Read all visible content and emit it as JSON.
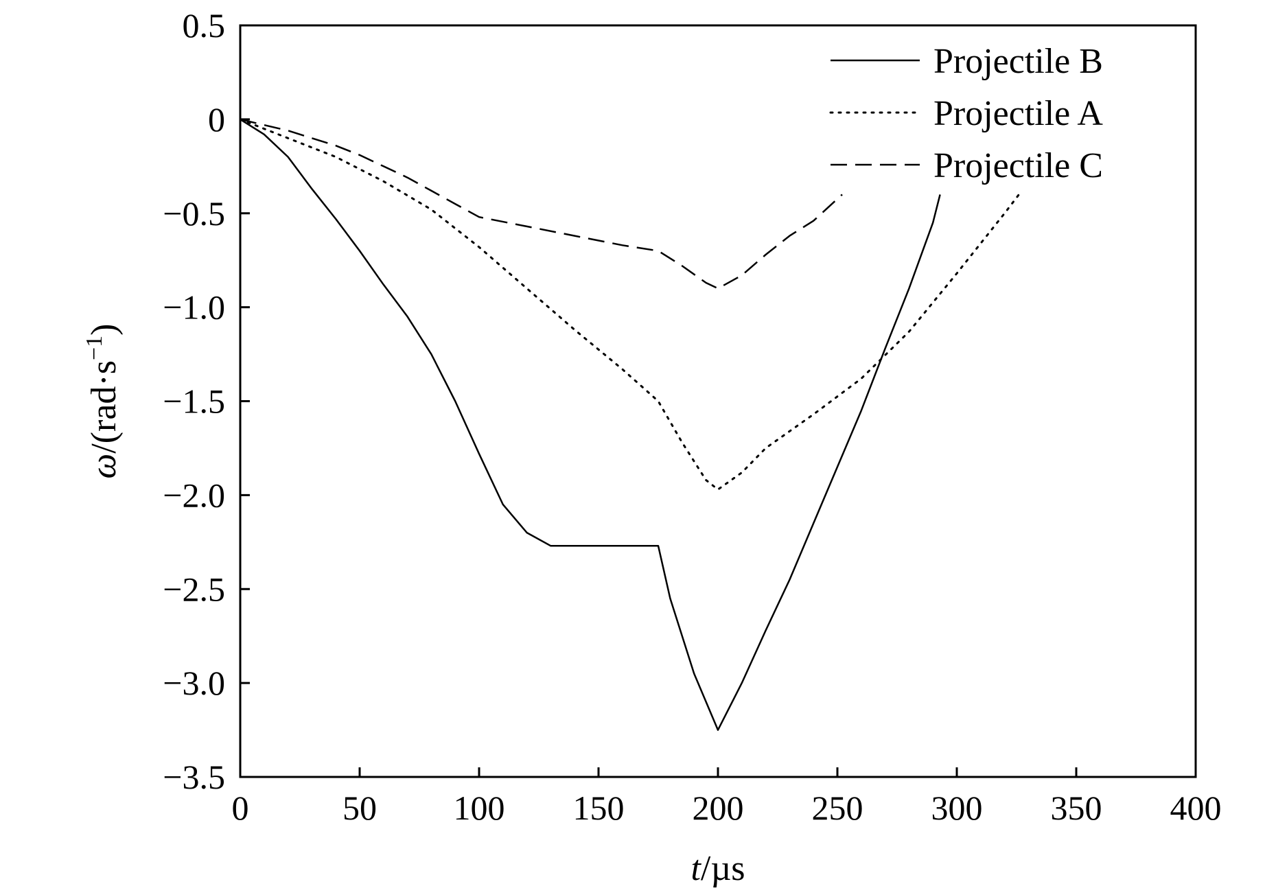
{
  "chart_data": {
    "type": "line",
    "xlabel_var": "t",
    "xlabel_unit": "/µs",
    "ylabel_var": "ω",
    "ylabel_unit": "/(rad·s",
    "ylabel_exp": "−1",
    "ylabel_close": ")",
    "xlim": [
      0,
      400
    ],
    "ylim": [
      -3.5,
      0.5
    ],
    "xticks": [
      0,
      50,
      100,
      150,
      200,
      250,
      300,
      350,
      400
    ],
    "yticks": [
      0.5,
      0,
      -0.5,
      -1.0,
      -1.5,
      -2.0,
      -2.5,
      -3.0,
      -3.5
    ],
    "ytick_labels": [
      "0.5",
      "0",
      "−0.5",
      "−1.0",
      "−1.5",
      "−2.0",
      "−2.5",
      "−3.0",
      "−3.5"
    ],
    "legend_position": "top-right",
    "grid": false,
    "series": [
      {
        "name": "Projectile B",
        "style": "solid",
        "color": "#000000",
        "x": [
          0,
          10,
          20,
          30,
          40,
          50,
          60,
          70,
          80,
          90,
          100,
          110,
          120,
          130,
          140,
          150,
          160,
          175,
          180,
          190,
          200,
          210,
          220,
          230,
          240,
          250,
          260,
          270,
          280,
          290,
          293
        ],
        "y": [
          0,
          -0.08,
          -0.2,
          -0.37,
          -0.53,
          -0.7,
          -0.88,
          -1.05,
          -1.25,
          -1.5,
          -1.78,
          -2.05,
          -2.2,
          -2.27,
          -2.27,
          -2.27,
          -2.27,
          -2.27,
          -2.55,
          -2.95,
          -3.25,
          -3.0,
          -2.72,
          -2.45,
          -2.15,
          -1.85,
          -1.55,
          -1.22,
          -0.9,
          -0.55,
          -0.4
        ]
      },
      {
        "name": "Projectile A",
        "style": "dotted",
        "color": "#000000",
        "x": [
          0,
          20,
          40,
          60,
          80,
          100,
          120,
          140,
          160,
          175,
          185,
          195,
          200,
          210,
          220,
          240,
          260,
          280,
          300,
          320,
          326
        ],
        "y": [
          0,
          -0.1,
          -0.2,
          -0.33,
          -0.48,
          -0.68,
          -0.9,
          -1.12,
          -1.33,
          -1.5,
          -1.72,
          -1.92,
          -1.97,
          -1.88,
          -1.75,
          -1.57,
          -1.38,
          -1.13,
          -0.82,
          -0.5,
          -0.4
        ]
      },
      {
        "name": "Projectile C",
        "style": "dashed",
        "color": "#000000",
        "x": [
          0,
          10,
          20,
          30,
          40,
          50,
          60,
          70,
          80,
          90,
          100,
          120,
          140,
          160,
          175,
          185,
          195,
          200,
          210,
          220,
          230,
          240,
          252
        ],
        "y": [
          0,
          -0.03,
          -0.06,
          -0.1,
          -0.14,
          -0.19,
          -0.25,
          -0.31,
          -0.38,
          -0.45,
          -0.52,
          -0.57,
          -0.62,
          -0.67,
          -0.7,
          -0.78,
          -0.87,
          -0.9,
          -0.83,
          -0.72,
          -0.62,
          -0.54,
          -0.4
        ]
      }
    ]
  }
}
